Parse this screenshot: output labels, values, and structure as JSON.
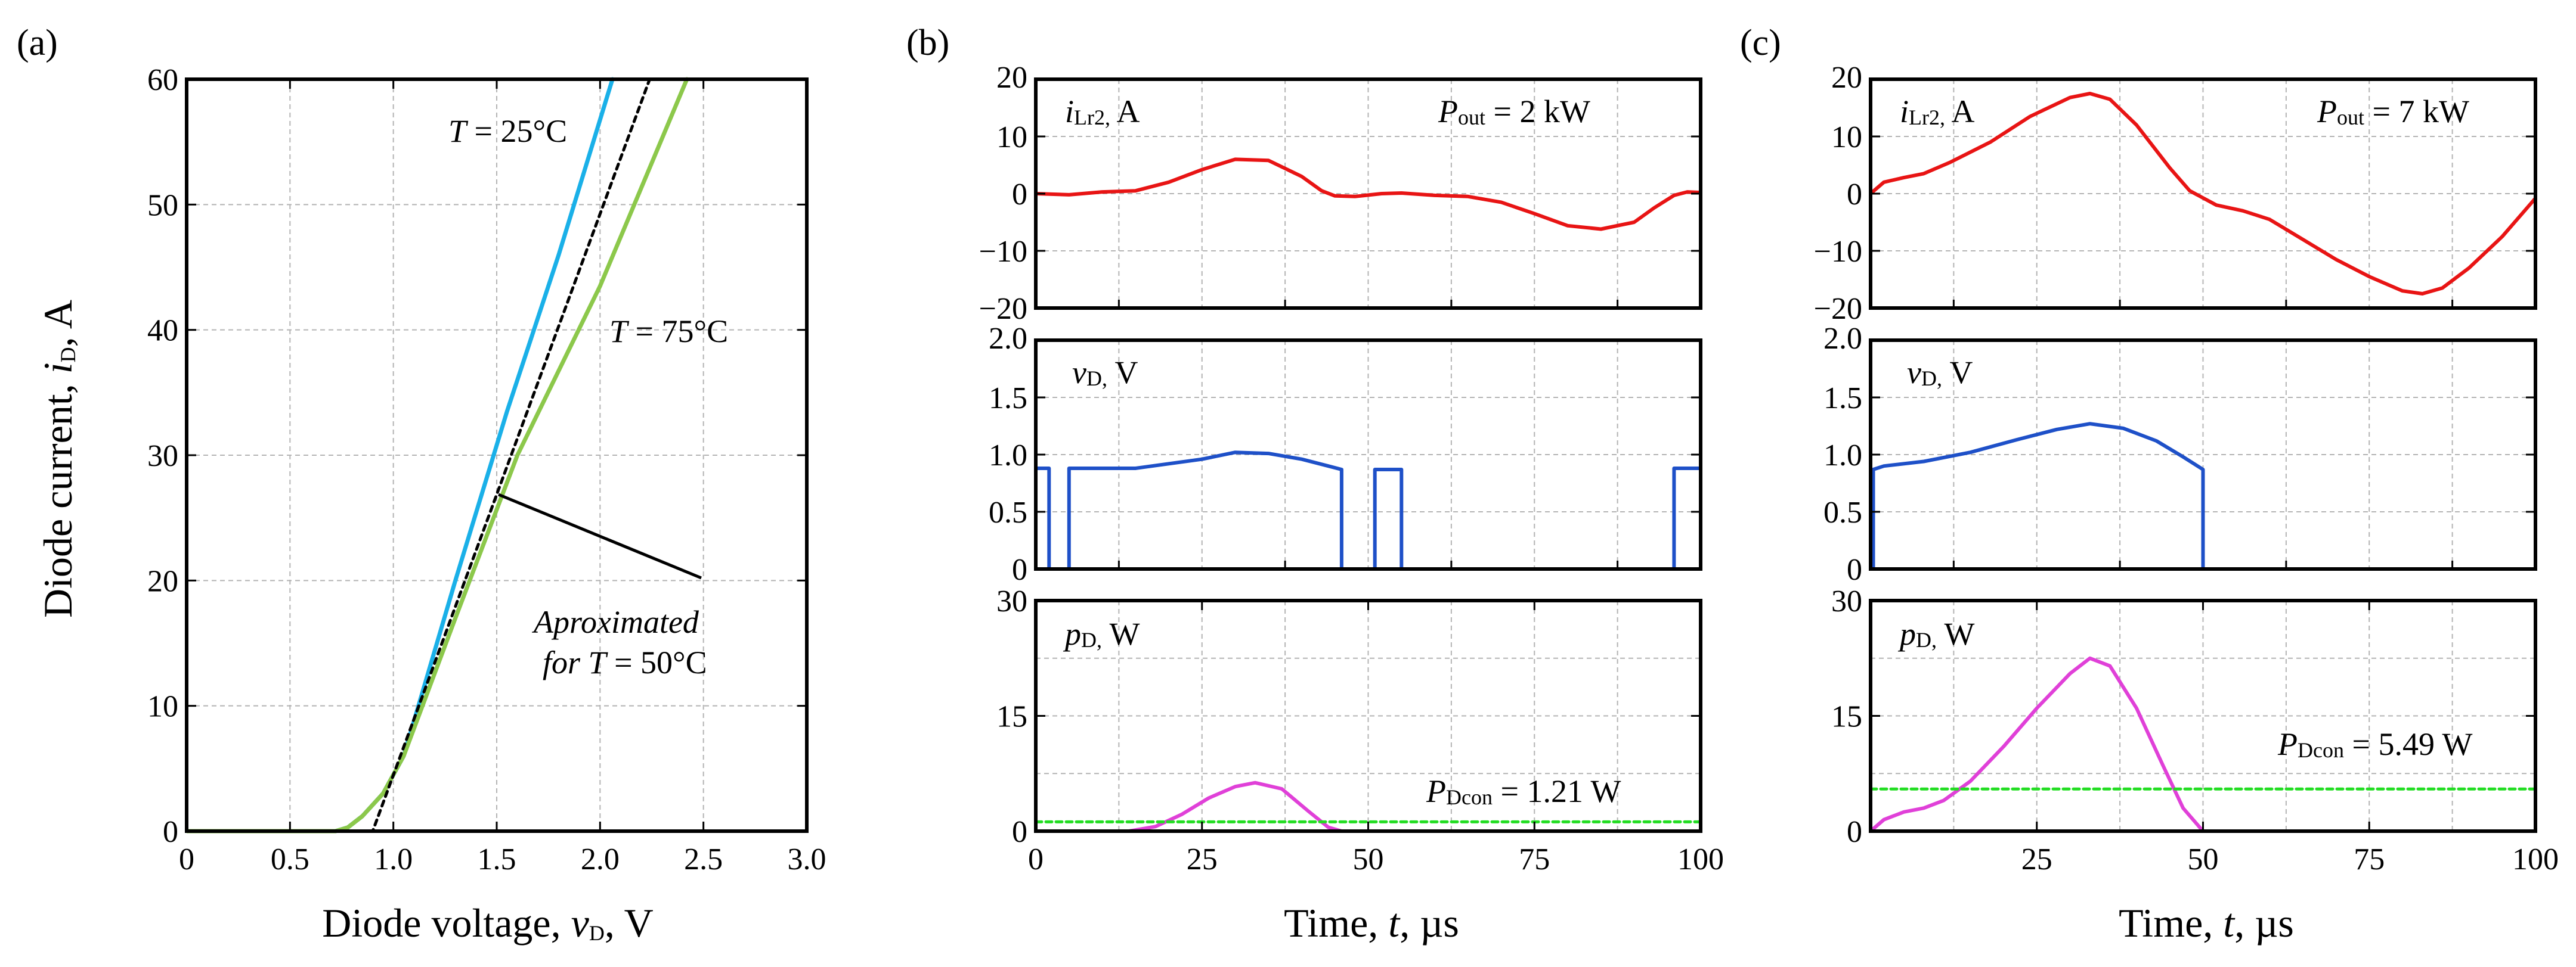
{
  "colors": {
    "t25": "#1ab0e8",
    "t75": "#8cc84b",
    "approx": "#000000",
    "current": "#e81414",
    "voltage": "#1e50c8",
    "power": "#e040d8",
    "pavg": "#22dd22"
  },
  "panel_a": {
    "label": "(a)",
    "xlabel_pre": "Diode voltage, ",
    "xlabel_var": "v",
    "xlabel_sub": "D",
    "xlabel_post": ", V",
    "ylabel_pre": "Diode current, ",
    "ylabel_var": "i",
    "ylabel_sub": "D",
    "ylabel_post": ", A",
    "ann_t25_var": "T",
    "ann_t25_rest": " = 25°C",
    "ann_t75_var": "T",
    "ann_t75_rest": " = 75°C",
    "ann_approx_line1": "Aproximated",
    "ann_approx_line2_pre": "for ",
    "ann_approx_line2_var": "T",
    "ann_approx_line2_rest": " = 50°C"
  },
  "panel_b": {
    "label": "(b)",
    "current_label_var": "i",
    "current_label_sub": "Lr2,",
    "current_label_unit": " A",
    "pout_var": "P",
    "pout_sub": "out",
    "pout_rest": " = 2 kW",
    "voltage_label_var": "v",
    "voltage_label_sub": "D,",
    "voltage_label_unit": " V",
    "power_label_var": "p",
    "power_label_sub": "D,",
    "power_label_unit": " W",
    "pdcon_var": "P",
    "pdcon_sub": "Dcon",
    "pdcon_rest": " =  1.21 W",
    "xlabel_pre": "Time, ",
    "xlabel_var": "t",
    "xlabel_post": ", µs"
  },
  "panel_c": {
    "label": "(c)",
    "current_label_var": "i",
    "current_label_sub": "Lr2,",
    "current_label_unit": " A",
    "pout_var": "P",
    "pout_sub": "out",
    "pout_rest": " = 7 kW",
    "voltage_label_var": "v",
    "voltage_label_sub": "D,",
    "voltage_label_unit": " V",
    "power_label_var": "p",
    "power_label_sub": "D,",
    "power_label_unit": " W",
    "pdcon_var": "P",
    "pdcon_sub": "Dcon",
    "pdcon_rest": " =  5.49 W",
    "xlabel_pre": "Time, ",
    "xlabel_var": "t",
    "xlabel_post": ", µs"
  },
  "chart_data": [
    {
      "id": "a",
      "type": "line",
      "title": "",
      "xlabel": "Diode voltage, vD, V",
      "ylabel": "Diode current, iD, A",
      "xlim": [
        0,
        3.0
      ],
      "ylim": [
        0,
        60
      ],
      "xticks": [
        0,
        0.5,
        1.0,
        1.5,
        2.0,
        2.5,
        3.0
      ],
      "xticklabels": [
        "0",
        "0.5",
        "1.0",
        "1.5",
        "2.0",
        "2.5",
        "3.0"
      ],
      "yticks": [
        0,
        10,
        20,
        30,
        40,
        50,
        60
      ],
      "yticklabels": [
        "0",
        "10",
        "20",
        "30",
        "40",
        "50",
        "60"
      ],
      "grid": true,
      "series": [
        {
          "name": "T = 25°C",
          "colorKey": "t25",
          "width": 7,
          "dash": "",
          "points": [
            [
              0,
              0
            ],
            [
              0.72,
              0
            ],
            [
              0.78,
              0.3
            ],
            [
              0.85,
              1.2
            ],
            [
              0.95,
              3.0
            ],
            [
              1.05,
              6.0
            ],
            [
              1.3,
              20.0
            ],
            [
              1.55,
              33.5
            ],
            [
              1.8,
              46.0
            ],
            [
              2.06,
              60.0
            ]
          ]
        },
        {
          "name": "T = 75°C",
          "colorKey": "t75",
          "width": 7,
          "dash": "",
          "points": [
            [
              0,
              0
            ],
            [
              0.72,
              0
            ],
            [
              0.78,
              0.3
            ],
            [
              0.85,
              1.2
            ],
            [
              0.95,
              3.0
            ],
            [
              1.05,
              6.0
            ],
            [
              1.3,
              17.0
            ],
            [
              1.6,
              30.0
            ],
            [
              2.0,
              43.5
            ],
            [
              2.42,
              60.0
            ]
          ]
        },
        {
          "name": "Aproximated for T = 50°C",
          "colorKey": "approx",
          "width": 5,
          "dash": "9 8",
          "points": [
            [
              0,
              0
            ],
            [
              0.9,
              0
            ],
            [
              2.24,
              60.0
            ]
          ]
        }
      ]
    },
    {
      "id": "b_current",
      "type": "line",
      "ylabel": "iLr2, A",
      "xlim": [
        0,
        100
      ],
      "ylim": [
        -20,
        20
      ],
      "yticks": [
        -20,
        -10,
        0,
        10,
        20
      ],
      "yticklabels": [
        "−20",
        "−10",
        "0",
        "10",
        "20"
      ],
      "series": [
        {
          "name": "iLr2",
          "colorKey": "current",
          "width": 6,
          "points": [
            [
              0,
              0
            ],
            [
              5,
              -0.2
            ],
            [
              10,
              0.3
            ],
            [
              15,
              0.5
            ],
            [
              20,
              2.0
            ],
            [
              25,
              4.2
            ],
            [
              30,
              6.0
            ],
            [
              35,
              5.8
            ],
            [
              40,
              3.0
            ],
            [
              43,
              0.5
            ],
            [
              45,
              -0.4
            ],
            [
              48,
              -0.5
            ],
            [
              52,
              0.0
            ],
            [
              55,
              0.1
            ],
            [
              60,
              -0.3
            ],
            [
              65,
              -0.5
            ],
            [
              70,
              -1.5
            ],
            [
              75,
              -3.5
            ],
            [
              80,
              -5.6
            ],
            [
              85,
              -6.2
            ],
            [
              90,
              -5.0
            ],
            [
              93,
              -2.5
            ],
            [
              96,
              -0.3
            ],
            [
              98,
              0.3
            ],
            [
              100,
              0.2
            ]
          ]
        }
      ]
    },
    {
      "id": "b_voltage",
      "type": "line",
      "ylabel": "vD, V",
      "xlim": [
        0,
        100
      ],
      "ylim": [
        0,
        2.0
      ],
      "yticks": [
        0,
        0.5,
        1.0,
        1.5,
        2.0
      ],
      "yticklabels": [
        "0",
        "0.5",
        "1.0",
        "1.5",
        "2.0"
      ],
      "series": [
        {
          "name": "vD",
          "colorKey": "voltage",
          "width": 6,
          "points": [
            [
              0,
              0.88
            ],
            [
              2,
              0.88
            ],
            [
              2,
              0
            ],
            [
              5,
              0
            ],
            [
              5,
              0.88
            ],
            [
              15,
              0.88
            ],
            [
              25,
              0.96
            ],
            [
              30,
              1.02
            ],
            [
              35,
              1.01
            ],
            [
              40,
              0.96
            ],
            [
              44,
              0.9
            ],
            [
              46,
              0.87
            ],
            [
              46,
              0
            ],
            [
              51,
              0
            ],
            [
              51,
              0.87
            ],
            [
              55,
              0.87
            ],
            [
              55,
              0
            ],
            [
              96,
              0
            ],
            [
              96,
              0.88
            ],
            [
              100,
              0.88
            ]
          ]
        }
      ]
    },
    {
      "id": "b_power",
      "type": "line",
      "ylabel": "pD, W",
      "xlabel": "Time, t, µs",
      "xlim": [
        0,
        100
      ],
      "ylim": [
        0,
        30
      ],
      "xticks": [
        0,
        25,
        50,
        75,
        100
      ],
      "xticklabels": [
        "0",
        "25",
        "50",
        "75",
        "100"
      ],
      "yticks": [
        0,
        15,
        30
      ],
      "yticklabels": [
        "0",
        "15",
        "30"
      ],
      "series": [
        {
          "name": "pD",
          "colorKey": "power",
          "width": 6,
          "dash": "",
          "points": [
            [
              0,
              0
            ],
            [
              14,
              0
            ],
            [
              18,
              0.6
            ],
            [
              22,
              2.2
            ],
            [
              26,
              4.3
            ],
            [
              30,
              5.8
            ],
            [
              33,
              6.3
            ],
            [
              37,
              5.5
            ],
            [
              41,
              2.6
            ],
            [
              44,
              0.5
            ],
            [
              46,
              0
            ],
            [
              100,
              0
            ]
          ]
        },
        {
          "name": "PDcon = 1.21 W",
          "colorKey": "pavg",
          "width": 5,
          "dash": "10 7",
          "points": [
            [
              0,
              1.21
            ],
            [
              100,
              1.21
            ]
          ]
        }
      ]
    },
    {
      "id": "c_current",
      "type": "line",
      "ylabel": "iLr2, A",
      "xlim": [
        0,
        100
      ],
      "ylim": [
        -20,
        20
      ],
      "yticks": [
        -20,
        -10,
        0,
        10,
        20
      ],
      "yticklabels": [
        "−20",
        "−10",
        "0",
        "10",
        "20"
      ],
      "series": [
        {
          "name": "iLr2",
          "colorKey": "current",
          "width": 6,
          "points": [
            [
              0,
              0
            ],
            [
              2,
              2.0
            ],
            [
              5,
              2.8
            ],
            [
              8,
              3.5
            ],
            [
              12,
              5.5
            ],
            [
              18,
              9.0
            ],
            [
              24,
              13.5
            ],
            [
              30,
              16.8
            ],
            [
              33,
              17.5
            ],
            [
              36,
              16.5
            ],
            [
              40,
              12.0
            ],
            [
              45,
              4.5
            ],
            [
              48,
              0.5
            ],
            [
              52,
              -2.0
            ],
            [
              56,
              -3.0
            ],
            [
              60,
              -4.5
            ],
            [
              65,
              -8.0
            ],
            [
              70,
              -11.5
            ],
            [
              75,
              -14.5
            ],
            [
              80,
              -17.0
            ],
            [
              83,
              -17.5
            ],
            [
              86,
              -16.5
            ],
            [
              90,
              -13.0
            ],
            [
              95,
              -7.5
            ],
            [
              100,
              -0.8
            ]
          ]
        }
      ]
    },
    {
      "id": "c_voltage",
      "type": "line",
      "ylabel": "vD, V",
      "xlim": [
        0,
        100
      ],
      "ylim": [
        0,
        2.0
      ],
      "yticks": [
        0,
        0.5,
        1.0,
        1.5,
        2.0
      ],
      "yticklabels": [
        "0",
        "0.5",
        "1.0",
        "1.5",
        "2.0"
      ],
      "series": [
        {
          "name": "vD",
          "colorKey": "voltage",
          "width": 6,
          "points": [
            [
              0,
              0
            ],
            [
              0.4,
              0
            ],
            [
              0.4,
              0.87
            ],
            [
              2,
              0.9
            ],
            [
              8,
              0.94
            ],
            [
              15,
              1.02
            ],
            [
              22,
              1.13
            ],
            [
              28,
              1.22
            ],
            [
              33,
              1.27
            ],
            [
              38,
              1.23
            ],
            [
              43,
              1.12
            ],
            [
              47,
              0.98
            ],
            [
              50,
              0.87
            ],
            [
              50,
              0
            ],
            [
              100,
              0
            ]
          ]
        }
      ]
    },
    {
      "id": "c_power",
      "type": "line",
      "ylabel": "pD, W",
      "xlabel": "Time, t, µs",
      "xlim": [
        0,
        100
      ],
      "ylim": [
        0,
        30
      ],
      "xticks": [
        25,
        50,
        75,
        100
      ],
      "xticklabels": [
        "25",
        "50",
        "75",
        "100"
      ],
      "yticks": [
        0,
        15,
        30
      ],
      "yticklabels": [
        "0",
        "15",
        "30"
      ],
      "series": [
        {
          "name": "pD",
          "colorKey": "power",
          "width": 6,
          "dash": "",
          "points": [
            [
              0,
              0
            ],
            [
              2,
              1.5
            ],
            [
              5,
              2.5
            ],
            [
              8,
              3.0
            ],
            [
              11,
              4.0
            ],
            [
              15,
              6.5
            ],
            [
              20,
              11.0
            ],
            [
              25,
              16.0
            ],
            [
              30,
              20.5
            ],
            [
              33,
              22.5
            ],
            [
              36,
              21.5
            ],
            [
              40,
              16.0
            ],
            [
              44,
              8.5
            ],
            [
              47,
              3.0
            ],
            [
              50,
              0
            ],
            [
              100,
              0
            ]
          ]
        },
        {
          "name": "PDcon = 5.49 W",
          "colorKey": "pavg",
          "width": 5,
          "dash": "10 7",
          "points": [
            [
              0,
              5.49
            ],
            [
              100,
              5.49
            ]
          ]
        }
      ]
    }
  ]
}
